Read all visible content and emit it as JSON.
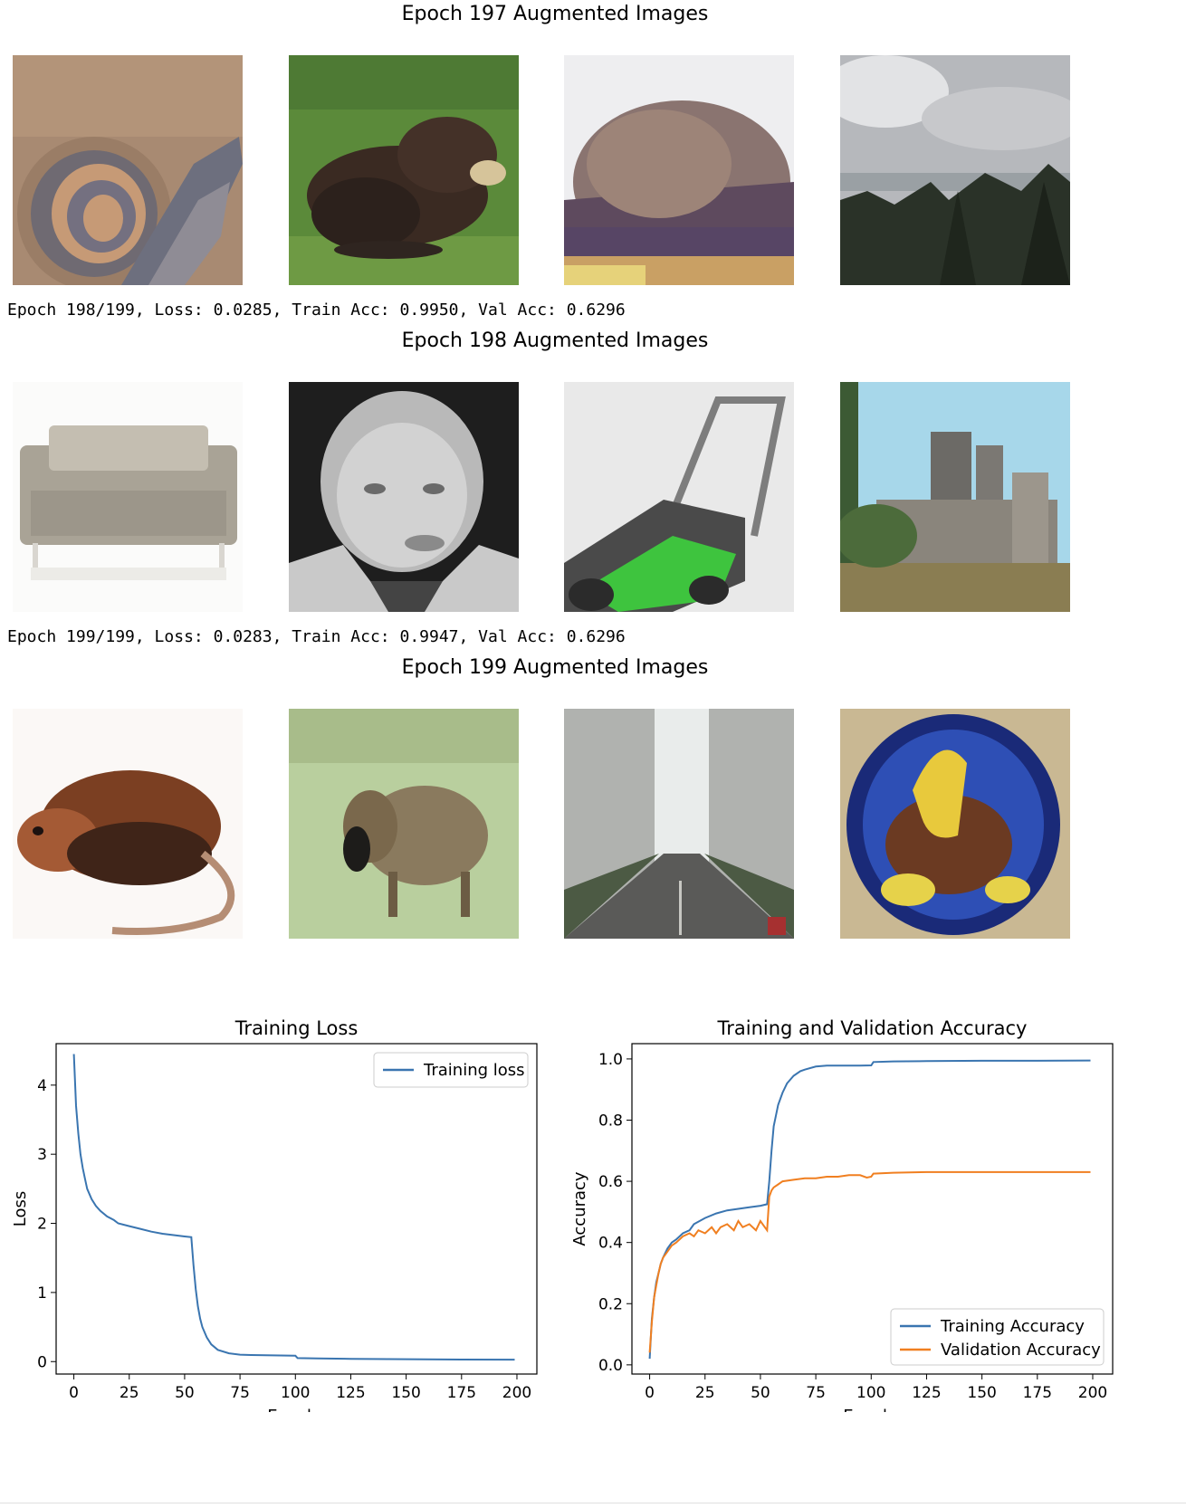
{
  "sections": [
    {
      "title": "Epoch 197 Augmented Images",
      "log": ""
    },
    {
      "title": "Epoch 198 Augmented Images",
      "log": "Epoch 198/199, Loss: 0.0285, Train Acc: 0.9950, Val Acc: 0.6296"
    },
    {
      "title": "Epoch 199 Augmented Images",
      "log": "Epoch 199/199, Loss: 0.0283, Train Acc: 0.9947, Val Acc: 0.6296"
    }
  ],
  "colors": {
    "training": "#3a75b0",
    "validation": "#f07f20"
  },
  "chart_data": [
    {
      "type": "line",
      "title": "Training Loss",
      "xlabel": "Epochs",
      "ylabel": "Loss",
      "xlim": [
        -8,
        209
      ],
      "ylim": [
        -0.18,
        4.6
      ],
      "xticks": [
        0,
        25,
        50,
        75,
        100,
        125,
        150,
        175,
        200
      ],
      "yticks": [
        0,
        1,
        2,
        3,
        4
      ],
      "legend": "top-right",
      "grid": false,
      "series": [
        {
          "name": "Training loss",
          "color": "#3a75b0",
          "x": [
            0,
            1,
            2,
            3,
            4,
            5,
            6,
            8,
            10,
            12,
            15,
            18,
            20,
            25,
            30,
            35,
            40,
            45,
            50,
            53,
            54,
            55,
            56,
            57,
            58,
            60,
            62,
            65,
            70,
            75,
            80,
            90,
            100,
            101,
            110,
            125,
            150,
            175,
            199
          ],
          "y": [
            4.45,
            3.7,
            3.3,
            3.0,
            2.8,
            2.65,
            2.5,
            2.35,
            2.25,
            2.18,
            2.1,
            2.05,
            2.0,
            1.96,
            1.92,
            1.88,
            1.85,
            1.83,
            1.81,
            1.8,
            1.4,
            1.05,
            0.8,
            0.62,
            0.5,
            0.35,
            0.25,
            0.17,
            0.12,
            0.1,
            0.095,
            0.09,
            0.085,
            0.05,
            0.045,
            0.04,
            0.035,
            0.03,
            0.028
          ]
        }
      ]
    },
    {
      "type": "line",
      "title": "Training and Validation Accuracy",
      "xlabel": "Epochs",
      "ylabel": "Accuracy",
      "xlim": [
        -8,
        209
      ],
      "ylim": [
        -0.03,
        1.05
      ],
      "xticks": [
        0,
        25,
        50,
        75,
        100,
        125,
        150,
        175,
        200
      ],
      "yticks": [
        0.0,
        0.2,
        0.4,
        0.6,
        0.8,
        1.0
      ],
      "legend": "bottom-right",
      "grid": false,
      "series": [
        {
          "name": "Training Accuracy",
          "color": "#3a75b0",
          "x": [
            0,
            1,
            2,
            3,
            4,
            5,
            6,
            8,
            10,
            12,
            15,
            18,
            20,
            25,
            30,
            35,
            40,
            45,
            50,
            53,
            54,
            55,
            56,
            58,
            60,
            62,
            65,
            68,
            70,
            75,
            80,
            90,
            95,
            100,
            101,
            110,
            125,
            150,
            175,
            199
          ],
          "y": [
            0.02,
            0.15,
            0.22,
            0.27,
            0.3,
            0.33,
            0.35,
            0.38,
            0.4,
            0.41,
            0.43,
            0.44,
            0.46,
            0.48,
            0.495,
            0.505,
            0.51,
            0.515,
            0.52,
            0.525,
            0.6,
            0.7,
            0.78,
            0.85,
            0.89,
            0.92,
            0.945,
            0.96,
            0.965,
            0.975,
            0.978,
            0.978,
            0.978,
            0.979,
            0.99,
            0.992,
            0.993,
            0.994,
            0.994,
            0.995
          ]
        },
        {
          "name": "Validation Accuracy",
          "color": "#f07f20",
          "x": [
            0,
            1,
            2,
            3,
            4,
            5,
            6,
            8,
            10,
            12,
            15,
            18,
            20,
            22,
            25,
            28,
            30,
            32,
            35,
            38,
            40,
            42,
            45,
            48,
            50,
            52,
            53,
            54,
            55,
            56,
            58,
            60,
            65,
            70,
            75,
            80,
            85,
            90,
            95,
            98,
            100,
            101,
            110,
            125,
            150,
            175,
            199
          ],
          "y": [
            0.04,
            0.14,
            0.22,
            0.26,
            0.3,
            0.33,
            0.35,
            0.37,
            0.39,
            0.4,
            0.42,
            0.43,
            0.42,
            0.44,
            0.43,
            0.45,
            0.43,
            0.45,
            0.46,
            0.44,
            0.47,
            0.45,
            0.46,
            0.44,
            0.47,
            0.45,
            0.44,
            0.55,
            0.57,
            0.58,
            0.59,
            0.6,
            0.605,
            0.61,
            0.61,
            0.615,
            0.615,
            0.62,
            0.62,
            0.612,
            0.615,
            0.625,
            0.628,
            0.63,
            0.63,
            0.63,
            0.63
          ]
        }
      ]
    }
  ]
}
